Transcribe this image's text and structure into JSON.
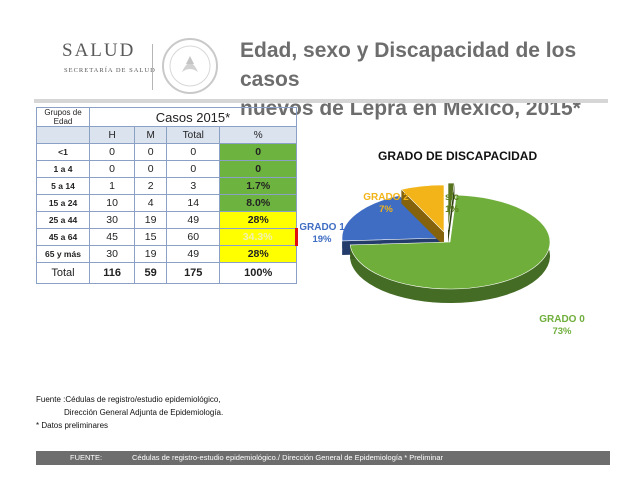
{
  "header": {
    "logo_name": "SALUD",
    "logo_subtitle": "SECRETARÍA DE SALUD",
    "title_line1": "Edad, sexo y Discapacidad de los casos",
    "title_line2": "nuevos de Lepra en México, 2015*"
  },
  "table": {
    "group_label_1": "Grupos de",
    "group_label_2": "Edad",
    "cases_label": "Casos 2015*",
    "columns": [
      "H",
      "M",
      "Total",
      "%"
    ],
    "rows": [
      {
        "age": "<1",
        "h": "0",
        "m": "0",
        "total": "0",
        "pct": "0"
      },
      {
        "age": "1 a 4",
        "h": "0",
        "m": "0",
        "total": "0",
        "pct": "0"
      },
      {
        "age": "5 a 14",
        "h": "1",
        "m": "2",
        "total": "3",
        "pct": "1.7%"
      },
      {
        "age": "15 a 24",
        "h": "10",
        "m": "4",
        "total": "14",
        "pct": "8.0%"
      },
      {
        "age": "25 a 44",
        "h": "30",
        "m": "19",
        "total": "49",
        "pct": "28%"
      },
      {
        "age": "45 a 64",
        "h": "45",
        "m": "15",
        "total": "60",
        "pct": "34.3%"
      },
      {
        "age": "65 y más",
        "h": "30",
        "m": "19",
        "total": "49",
        "pct": "28%"
      }
    ],
    "total": {
      "label": "Total",
      "h": "116",
      "m": "59",
      "total": "175",
      "pct": "100%"
    }
  },
  "chart_data": {
    "type": "pie",
    "title": "GRADO DE DISCAPACIDAD",
    "slices": [
      {
        "label": "GRADO 0",
        "value": 73,
        "value_label": "73%",
        "color": "#6fae3b"
      },
      {
        "label": "GRADO 1",
        "value": 19,
        "value_label": "19%",
        "color": "#3f6dc3"
      },
      {
        "label": "GRADO 2",
        "value": 7,
        "value_label": "7%",
        "color": "#f2b418"
      },
      {
        "label": "s/c",
        "value": 1,
        "value_label": "1%",
        "color": "#58731f"
      }
    ]
  },
  "notes": {
    "line1": "Fuente :Cédulas de registro/estudio epidemiológico,",
    "line2": "Dirección General Adjunta de Epidemiología.",
    "line3": "* Datos preliminares"
  },
  "footer": {
    "label": "FUENTE:",
    "text": "Cédulas de registro-estudio epidemiológico./ Dirección General de Epidemiología * Preliminar"
  }
}
